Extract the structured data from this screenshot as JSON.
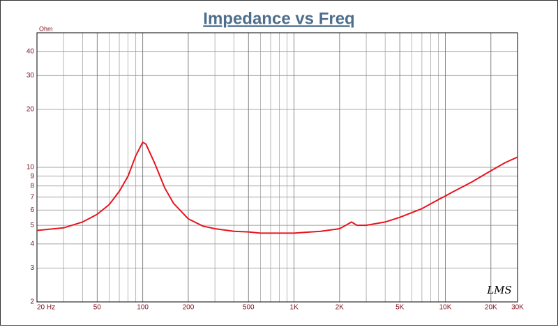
{
  "chart_data": {
    "type": "line",
    "title": "Impedance vs Freq",
    "y_label": "Ohm",
    "watermark": "LMS",
    "xlog": true,
    "ylog": true,
    "grid": true,
    "color": "#e8141e",
    "x": [
      20,
      30,
      40,
      50,
      60,
      70,
      80,
      90,
      100,
      105,
      120,
      140,
      160,
      200,
      250,
      300,
      400,
      500,
      600,
      800,
      1000,
      1200,
      1500,
      2000,
      2200,
      2400,
      2600,
      3000,
      4000,
      5000,
      7000,
      9000,
      10000,
      11000,
      15000,
      20000,
      25000,
      30000
    ],
    "values": [
      4.7,
      4.85,
      5.2,
      5.7,
      6.4,
      7.5,
      9.0,
      11.5,
      13.5,
      13.2,
      10.5,
      7.8,
      6.5,
      5.4,
      4.95,
      4.8,
      4.65,
      4.62,
      4.55,
      4.55,
      4.55,
      4.6,
      4.65,
      4.8,
      5.0,
      5.2,
      5.0,
      5.0,
      5.2,
      5.5,
      6.1,
      6.8,
      7.1,
      7.4,
      8.4,
      9.6,
      10.6,
      11.3
    ],
    "xlim": [
      20,
      30000
    ],
    "ylim": [
      2,
      50
    ],
    "xticks": [
      {
        "value": 20,
        "label": "20  Hz"
      },
      50,
      100,
      200,
      500,
      {
        "value": 1000,
        "label": "1K"
      },
      {
        "value": 2000,
        "label": "2K"
      },
      {
        "value": 5000,
        "label": "5K"
      },
      {
        "value": 10000,
        "label": "10K"
      },
      {
        "value": 20000,
        "label": "20K"
      },
      {
        "value": 30000,
        "label": "30K"
      }
    ],
    "x_minor_grid": [
      30,
      40,
      60,
      70,
      80,
      90,
      300,
      400,
      600,
      700,
      800,
      900,
      3000,
      4000,
      6000,
      7000,
      8000,
      9000
    ],
    "yticks": [
      2,
      3,
      4,
      5,
      6,
      7,
      8,
      9,
      10,
      20,
      30,
      40
    ]
  }
}
